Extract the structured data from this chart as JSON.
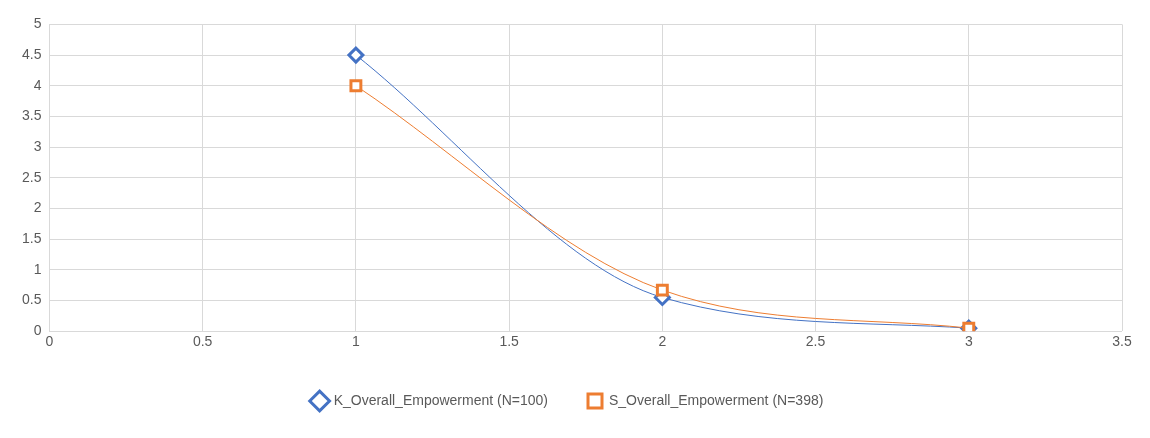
{
  "chart_data": {
    "type": "line",
    "x": [
      1,
      2,
      3
    ],
    "series": [
      {
        "name": "K_Overall_Empowerment (N=100)",
        "color": "#4472c4",
        "marker": "diamond",
        "values": [
          4.5,
          0.55,
          0.05
        ]
      },
      {
        "name": "S_Overall_Empowerment (N=398)",
        "color": "#ed7d31",
        "marker": "square",
        "values": [
          4,
          0.67,
          0.05
        ]
      }
    ],
    "xlim": [
      0,
      3.5
    ],
    "xticks": [
      0,
      0.5,
      1,
      1.5,
      2,
      2.5,
      3,
      3.5
    ],
    "ylim": [
      0,
      5
    ],
    "yticks": [
      0,
      0.5,
      1,
      1.5,
      2,
      2.5,
      3,
      3.5,
      4,
      4.5,
      5
    ],
    "grid": true,
    "legend": "bottom",
    "line_style": "solid"
  }
}
